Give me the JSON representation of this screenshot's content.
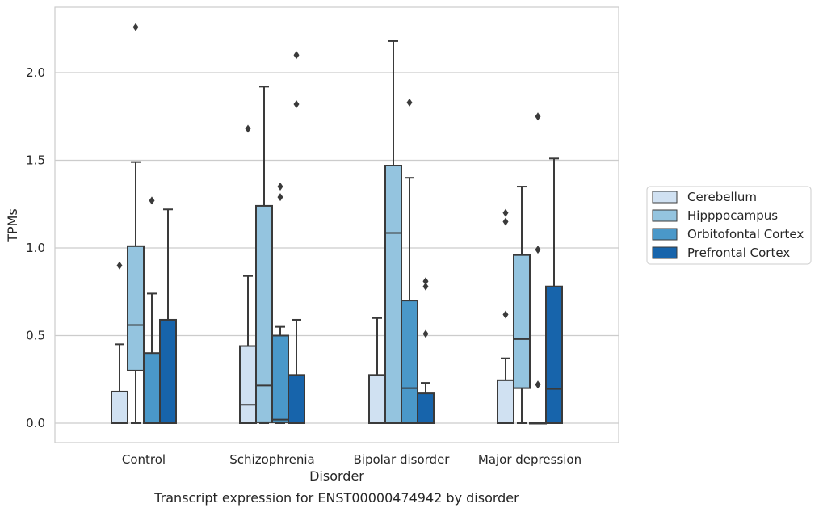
{
  "chart_data": {
    "type": "boxplot",
    "title": "",
    "caption": "Transcript expression for ENST00000474942 by disorder",
    "xlabel": "Disorder",
    "ylabel": "TPMs",
    "ylim": [
      -0.11,
      2.38
    ],
    "yticks": [
      0.0,
      0.5,
      1.0,
      1.5,
      2.0
    ],
    "ytick_labels": [
      "0.0",
      "0.5",
      "1.0",
      "1.5",
      "2.0"
    ],
    "grid": "horizontal",
    "legend_position": "right",
    "categories": [
      "Control",
      "Schizophrenia",
      "Bipolar disorder",
      "Major depression"
    ],
    "series": [
      {
        "name": "Cerebellum",
        "color": "#d0e1f2",
        "boxes": [
          {
            "whislo": 0.0,
            "q1": 0.0,
            "med": 0.0,
            "q3": 0.18,
            "whishi": 0.45,
            "fliers": [
              0.9
            ]
          },
          {
            "whislo": 0.0,
            "q1": 0.0,
            "med": 0.105,
            "q3": 0.44,
            "whishi": 0.84,
            "fliers": [
              1.68
            ]
          },
          {
            "whislo": 0.0,
            "q1": 0.0,
            "med": 0.0,
            "q3": 0.275,
            "whishi": 0.6,
            "fliers": []
          },
          {
            "whislo": 0.0,
            "q1": 0.0,
            "med": 0.0,
            "q3": 0.245,
            "whishi": 0.37,
            "fliers": [
              0.62,
              1.15,
              1.2
            ]
          }
        ]
      },
      {
        "name": "Hipppocampus",
        "color": "#94c4df",
        "boxes": [
          {
            "whislo": 0.0,
            "q1": 0.3,
            "med": 0.56,
            "q3": 1.01,
            "whishi": 1.49,
            "fliers": [
              2.26
            ]
          },
          {
            "whislo": 0.0,
            "q1": 0.005,
            "med": 0.215,
            "q3": 1.24,
            "whishi": 1.92,
            "fliers": []
          },
          {
            "whislo": 0.0,
            "q1": 0.0,
            "med": 1.085,
            "q3": 1.47,
            "whishi": 2.18,
            "fliers": []
          },
          {
            "whislo": 0.0,
            "q1": 0.2,
            "med": 0.48,
            "q3": 0.96,
            "whishi": 1.35,
            "fliers": []
          }
        ]
      },
      {
        "name": "Orbitofontal Cortex",
        "color": "#4a98c9",
        "boxes": [
          {
            "whislo": 0.0,
            "q1": 0.0,
            "med": 0.0,
            "q3": 0.4,
            "whishi": 0.74,
            "fliers": [
              1.27
            ]
          },
          {
            "whislo": 0.0,
            "q1": 0.005,
            "med": 0.02,
            "q3": 0.5,
            "whishi": 0.55,
            "fliers": [
              1.29,
              1.35
            ]
          },
          {
            "whislo": 0.0,
            "q1": 0.0,
            "med": 0.2,
            "q3": 0.7,
            "whishi": 1.4,
            "fliers": [
              1.83
            ]
          },
          {
            "whislo": 0.0,
            "q1": 0.0,
            "med": 0.0,
            "q3": 0.0,
            "whishi": 0.0,
            "fliers": [
              0.22,
              0.99,
              1.75
            ]
          }
        ]
      },
      {
        "name": "Prefrontal Cortex",
        "color": "#1764ab",
        "boxes": [
          {
            "whislo": 0.0,
            "q1": 0.0,
            "med": 0.0,
            "q3": 0.59,
            "whishi": 1.22,
            "fliers": []
          },
          {
            "whislo": 0.0,
            "q1": 0.0,
            "med": 0.0,
            "q3": 0.275,
            "whishi": 0.59,
            "fliers": [
              1.82,
              2.1
            ]
          },
          {
            "whislo": 0.0,
            "q1": 0.0,
            "med": 0.0,
            "q3": 0.17,
            "whishi": 0.23,
            "fliers": [
              0.51,
              0.78,
              0.81
            ]
          },
          {
            "whislo": 0.0,
            "q1": 0.0,
            "med": 0.195,
            "q3": 0.78,
            "whishi": 1.51,
            "fliers": []
          }
        ]
      }
    ],
    "line_color": "#3a3a3a",
    "grid_color": "#cccccc",
    "frame_color": "#cccccc"
  }
}
